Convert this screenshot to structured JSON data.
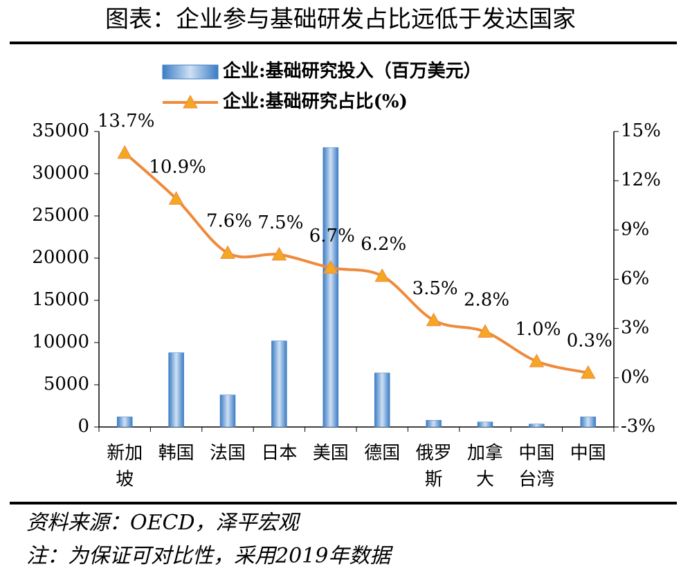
{
  "chart_data": {
    "type": "bar-line",
    "title": "图表：企业参与基础研发占比远低于发达国家",
    "source": "资料来源：OECD，泽平宏观",
    "note": "注：为保证可对比性，采用2019年数据",
    "categories": [
      "新加坡",
      "韩国",
      "法国",
      "日本",
      "美国",
      "德国",
      "俄罗斯",
      "加拿大",
      "中国台湾",
      "中国"
    ],
    "series": [
      {
        "name": "企业:基础研究投入（百万美元）",
        "type": "bar",
        "color": "#3b7cc4",
        "values": [
          1200,
          8800,
          3800,
          10200,
          33100,
          6400,
          800,
          600,
          350,
          1200
        ]
      },
      {
        "name": "企业:基础研究占比(%)",
        "type": "line",
        "axis": "y2",
        "color": "#ef8a3c",
        "marker_color": "#f5a623",
        "values": [
          13.7,
          10.9,
          7.6,
          7.5,
          6.7,
          6.2,
          3.5,
          2.8,
          1.0,
          0.3
        ],
        "value_labels": [
          "13.7%",
          "10.9%",
          "7.6%",
          "7.5%",
          "6.7%",
          "6.2%",
          "3.5%",
          "2.8%",
          "1.0%",
          "0.3%"
        ]
      }
    ],
    "ylim": [
      0,
      35000
    ],
    "yticks": [
      0,
      5000,
      10000,
      15000,
      20000,
      25000,
      30000,
      35000
    ],
    "y2lim": [
      -3,
      15
    ],
    "y2ticks": [
      {
        "value": -3,
        "label": "-3%"
      },
      {
        "value": 0,
        "label": "0%"
      },
      {
        "value": 3,
        "label": "3%"
      },
      {
        "value": 6,
        "label": "6%"
      },
      {
        "value": 9,
        "label": "9%"
      },
      {
        "value": 12,
        "label": "12%"
      },
      {
        "value": 15,
        "label": "15%"
      }
    ],
    "grid": false
  }
}
